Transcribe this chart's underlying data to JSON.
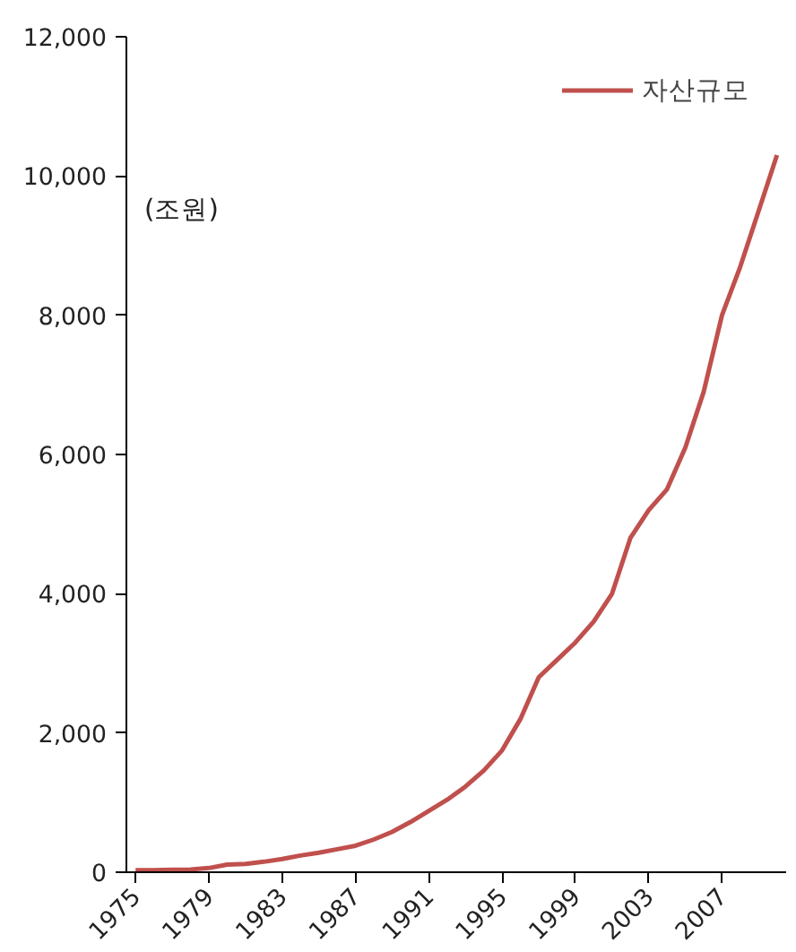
{
  "chart_data": {
    "type": "line",
    "x": [
      1975,
      1976,
      1977,
      1978,
      1979,
      1980,
      1981,
      1982,
      1983,
      1984,
      1985,
      1986,
      1987,
      1988,
      1989,
      1990,
      1991,
      1992,
      1993,
      1994,
      1995,
      1996,
      1997,
      1998,
      1999,
      2000,
      2001,
      2002,
      2003,
      2004,
      2005,
      2006,
      2007,
      2008,
      2009,
      2010
    ],
    "series": [
      {
        "name": "자산규모",
        "color": "#c0504d",
        "values": [
          30,
          30,
          35,
          40,
          60,
          110,
          120,
          150,
          190,
          240,
          280,
          330,
          380,
          470,
          580,
          720,
          880,
          1040,
          1230,
          1460,
          1750,
          2200,
          2800,
          3050,
          3300,
          3600,
          4000,
          4800,
          5200,
          5500,
          6100,
          6900,
          8000,
          8700,
          9500,
          10300
        ]
      }
    ],
    "annotations": [
      "(조원)"
    ],
    "xlim": [
      1974.5,
      2010.5
    ],
    "xticks": [
      1975,
      1979,
      1983,
      1987,
      1991,
      1995,
      1999,
      2003,
      2007
    ],
    "ylim": [
      0,
      12000
    ],
    "yticks": [
      0,
      {
        "value": 2000,
        "label": "2,000"
      },
      {
        "value": 4000,
        "label": "4,000"
      },
      {
        "value": 6000,
        "label": "6,000"
      },
      {
        "value": 8000,
        "label": "8,000"
      },
      {
        "value": 10000,
        "label": "10,000"
      },
      {
        "value": 12000,
        "label": "12,000"
      }
    ],
    "grid": false,
    "legend": "top right",
    "marker": "none",
    "line_style": "solid"
  }
}
